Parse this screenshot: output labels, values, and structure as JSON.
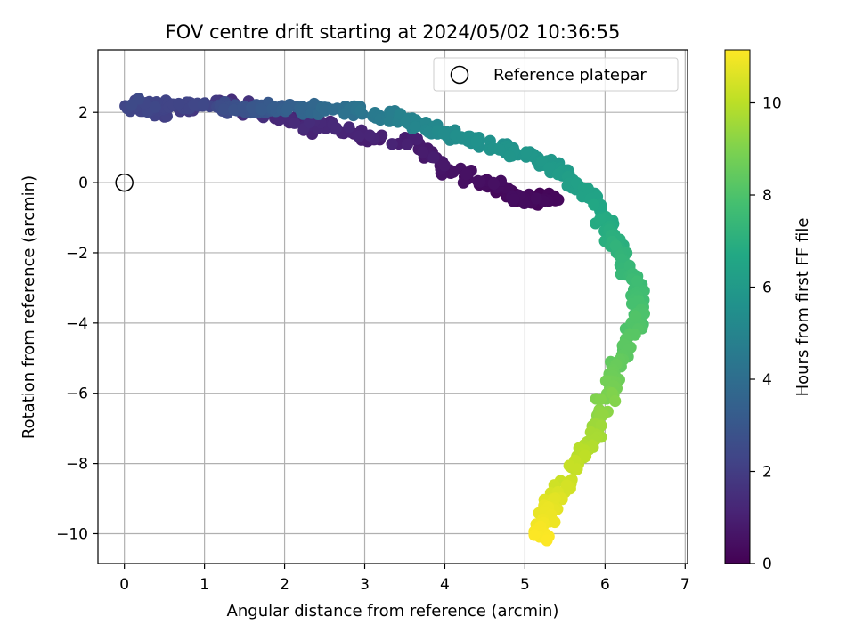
{
  "chart_data": {
    "type": "scatter",
    "title": "FOV centre drift starting at 2024/05/02 10:36:55",
    "xlabel": "Angular distance from reference (arcmin)",
    "ylabel": "Rotation from reference (arcmin)",
    "xlim": [
      -0.33,
      7.03
    ],
    "ylim": [
      -10.85,
      3.78
    ],
    "xticks": [
      0,
      1,
      2,
      3,
      4,
      5,
      6,
      7
    ],
    "xtick_labels": [
      "0",
      "1",
      "2",
      "3",
      "4",
      "5",
      "6",
      "7"
    ],
    "yticks": [
      2,
      0,
      -2,
      -4,
      -6,
      -8,
      -10
    ],
    "ytick_labels": [
      "2",
      "0",
      "−2",
      "−4",
      "−6",
      "−8",
      "−10"
    ],
    "grid": true,
    "legend": {
      "position": "top-right",
      "entries": [
        "Reference platepar"
      ]
    },
    "reference_point": {
      "x": 0,
      "y": 0,
      "marker": "open-circle"
    },
    "colorbar": {
      "label": "Hours from first FF file",
      "min": 0,
      "max": 11.15,
      "ticks": [
        0,
        2,
        4,
        6,
        8,
        10
      ],
      "tick_labels": [
        "0",
        "2",
        "4",
        "6",
        "8",
        "10"
      ],
      "colormap": "viridis"
    },
    "trajectory_points": [
      {
        "x": 0.0,
        "y": 2.15,
        "h": 2.3
      },
      {
        "x": 0.5,
        "y": 2.2,
        "h": 2.2
      },
      {
        "x": 1.0,
        "y": 2.2,
        "h": 2.3
      },
      {
        "x": 1.5,
        "y": 2.1,
        "h": 2.8
      },
      {
        "x": 2.0,
        "y": 2.1,
        "h": 3.3
      },
      {
        "x": 2.5,
        "y": 2.1,
        "h": 3.8
      },
      {
        "x": 3.0,
        "y": 2.05,
        "h": 4.3
      },
      {
        "x": 3.5,
        "y": 1.8,
        "h": 4.9
      },
      {
        "x": 4.0,
        "y": 1.4,
        "h": 5.3
      },
      {
        "x": 4.5,
        "y": 1.1,
        "h": 5.6
      },
      {
        "x": 5.0,
        "y": 0.8,
        "h": 5.8
      },
      {
        "x": 5.4,
        "y": 0.4,
        "h": 6.0
      },
      {
        "x": 5.7,
        "y": -0.2,
        "h": 6.3
      },
      {
        "x": 6.0,
        "y": -1.0,
        "h": 6.7
      },
      {
        "x": 6.2,
        "y": -2.0,
        "h": 7.2
      },
      {
        "x": 6.4,
        "y": -3.0,
        "h": 7.6
      },
      {
        "x": 6.45,
        "y": -3.6,
        "h": 7.9
      },
      {
        "x": 6.3,
        "y": -4.5,
        "h": 8.2
      },
      {
        "x": 6.1,
        "y": -5.5,
        "h": 8.6
      },
      {
        "x": 6.0,
        "y": -6.5,
        "h": 9.2
      },
      {
        "x": 5.8,
        "y": -7.5,
        "h": 9.8
      },
      {
        "x": 5.5,
        "y": -8.5,
        "h": 10.3
      },
      {
        "x": 5.3,
        "y": -9.3,
        "h": 10.8
      },
      {
        "x": 5.2,
        "y": -10.1,
        "h": 11.1
      }
    ],
    "early_cluster_points": [
      {
        "x": 0.1,
        "y": 2.2,
        "h": 2.4
      },
      {
        "x": 0.6,
        "y": 2.0,
        "h": 2.1
      },
      {
        "x": 1.3,
        "y": 2.3,
        "h": 1.5
      },
      {
        "x": 1.9,
        "y": 1.9,
        "h": 1.3
      },
      {
        "x": 2.3,
        "y": 1.6,
        "h": 1.2
      },
      {
        "x": 2.6,
        "y": 1.6,
        "h": 1.2
      },
      {
        "x": 3.1,
        "y": 1.3,
        "h": 1.0
      },
      {
        "x": 3.6,
        "y": 1.2,
        "h": 0.9
      },
      {
        "x": 4.0,
        "y": 0.3,
        "h": 0.6
      },
      {
        "x": 4.4,
        "y": 0.1,
        "h": 0.4
      },
      {
        "x": 4.7,
        "y": -0.2,
        "h": 0.3
      },
      {
        "x": 4.9,
        "y": -0.5,
        "h": 0.2
      },
      {
        "x": 5.2,
        "y": -0.5,
        "h": 0.2
      },
      {
        "x": 5.4,
        "y": -0.4,
        "h": 0.15
      }
    ]
  }
}
